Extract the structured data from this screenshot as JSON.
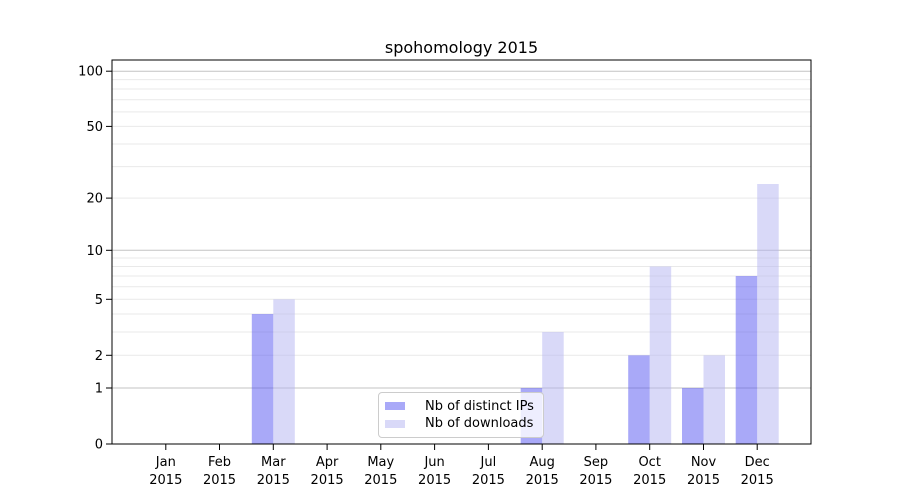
{
  "chart_data": {
    "type": "bar",
    "title": "spohomology 2015",
    "categories": [
      "Jan",
      "Feb",
      "Mar",
      "Apr",
      "May",
      "Jun",
      "Jul",
      "Aug",
      "Sep",
      "Oct",
      "Nov",
      "Dec"
    ],
    "category_year": "2015",
    "series": [
      {
        "name": "Nb of distinct IPs",
        "color": "#5353f1",
        "fill_opacity": 0.5,
        "values": [
          0,
          0,
          4,
          0,
          0,
          0,
          0,
          1,
          0,
          2,
          1,
          7
        ]
      },
      {
        "name": "Nb of downloads",
        "color": "#b4b4f2",
        "fill_opacity": 0.5,
        "values": [
          0,
          0,
          5,
          0,
          0,
          0,
          0,
          3,
          0,
          8,
          2,
          24
        ]
      }
    ],
    "yscale": "log1p",
    "ylim": [
      0,
      115
    ],
    "y_ticks": [
      0,
      1,
      2,
      5,
      10,
      20,
      50,
      100
    ],
    "y_major_gridlines": [
      1,
      10,
      100
    ],
    "y_minor_gridlines": [
      2,
      3,
      4,
      5,
      6,
      7,
      8,
      9,
      20,
      30,
      40,
      50,
      60,
      70,
      80,
      90
    ],
    "xlabel": "",
    "ylabel": "",
    "grid": true,
    "legend_position": "bottom-center",
    "colors": {
      "minor_grid": "#e9e9e9",
      "major_grid": "#c3c3c3",
      "axis": "#000000",
      "legend_border": "#cccccc"
    }
  }
}
